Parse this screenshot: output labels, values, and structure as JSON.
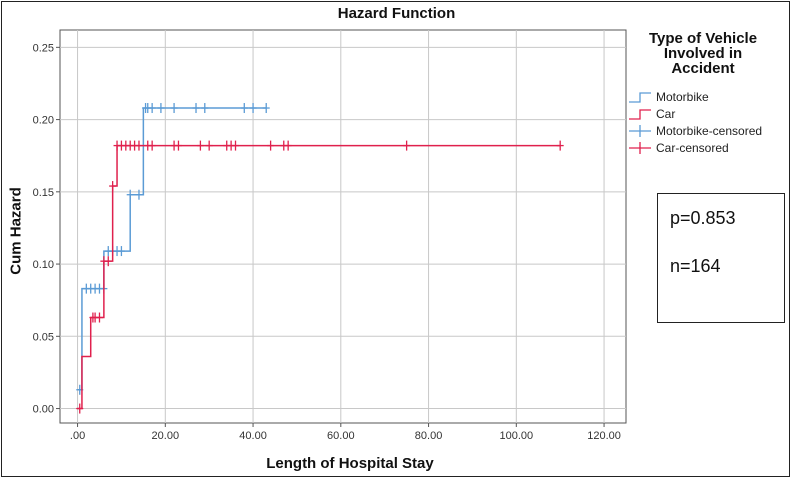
{
  "chart_data": {
    "type": "line",
    "title": "Hazard Function",
    "xlabel": "Length of Hospital Stay",
    "ylabel": "Cum Hazard",
    "xlim": [
      -4,
      125
    ],
    "ylim": [
      -0.01,
      0.262
    ],
    "x_ticks": [
      0,
      20,
      40,
      60,
      80,
      100,
      120
    ],
    "x_tick_labels": [
      ".00",
      "20.00",
      "40.00",
      "60.00",
      "80.00",
      "100.00",
      "120.00"
    ],
    "y_ticks": [
      0.0,
      0.05,
      0.1,
      0.15,
      0.2,
      0.25
    ],
    "y_tick_labels": [
      "0.00",
      "0.05",
      "0.10",
      "0.15",
      "0.20",
      "0.25"
    ],
    "grid": true,
    "legend": {
      "title_lines": [
        "Type of Vehicle",
        "Involved in",
        "Accident"
      ],
      "position": "right",
      "entries": [
        {
          "label": "Motorbike",
          "color": "#5b9bd5",
          "marker": "step"
        },
        {
          "label": "Car",
          "color": "#e0204d",
          "marker": "step"
        },
        {
          "label": "Motorbike-censored",
          "color": "#5b9bd5",
          "marker": "plus"
        },
        {
          "label": "Car-censored",
          "color": "#e0204d",
          "marker": "plus"
        }
      ]
    },
    "series": [
      {
        "name": "Motorbike",
        "color": "#5b9bd5",
        "steps": [
          [
            0,
            0.013
          ],
          [
            1,
            0.083
          ],
          [
            6,
            0.109
          ],
          [
            12,
            0.148
          ],
          [
            15,
            0.208
          ],
          [
            43,
            0.208
          ]
        ],
        "censored_x": [
          0.5,
          2,
          3,
          4,
          5,
          6,
          7,
          8,
          9,
          10,
          12,
          14,
          15.5,
          16,
          17,
          19,
          22,
          27,
          29,
          38,
          40,
          43
        ],
        "censored_y": [
          0.013,
          0.083,
          0.083,
          0.083,
          0.083,
          0.083,
          0.109,
          0.109,
          0.109,
          0.109,
          0.148,
          0.148,
          0.208,
          0.208,
          0.208,
          0.208,
          0.208,
          0.208,
          0.208,
          0.208,
          0.208,
          0.208
        ]
      },
      {
        "name": "Car",
        "color": "#e0204d",
        "steps": [
          [
            0,
            0.0
          ],
          [
            1,
            0.036
          ],
          [
            3,
            0.063
          ],
          [
            6,
            0.102
          ],
          [
            8,
            0.154
          ],
          [
            9,
            0.182
          ],
          [
            110,
            0.182
          ]
        ],
        "censored_x": [
          0.5,
          3.5,
          4,
          5,
          6,
          7,
          8,
          9,
          10,
          11,
          12,
          13,
          14,
          16,
          17,
          22,
          23,
          28,
          30,
          34,
          35,
          36,
          44,
          47,
          48,
          75,
          110
        ],
        "censored_y": [
          0.0,
          0.063,
          0.063,
          0.063,
          0.102,
          0.102,
          0.154,
          0.182,
          0.182,
          0.182,
          0.182,
          0.182,
          0.182,
          0.182,
          0.182,
          0.182,
          0.182,
          0.182,
          0.182,
          0.182,
          0.182,
          0.182,
          0.182,
          0.182,
          0.182,
          0.182,
          0.182
        ]
      }
    ]
  },
  "stats": {
    "p_value": "p=0.853",
    "n": "n=164"
  }
}
